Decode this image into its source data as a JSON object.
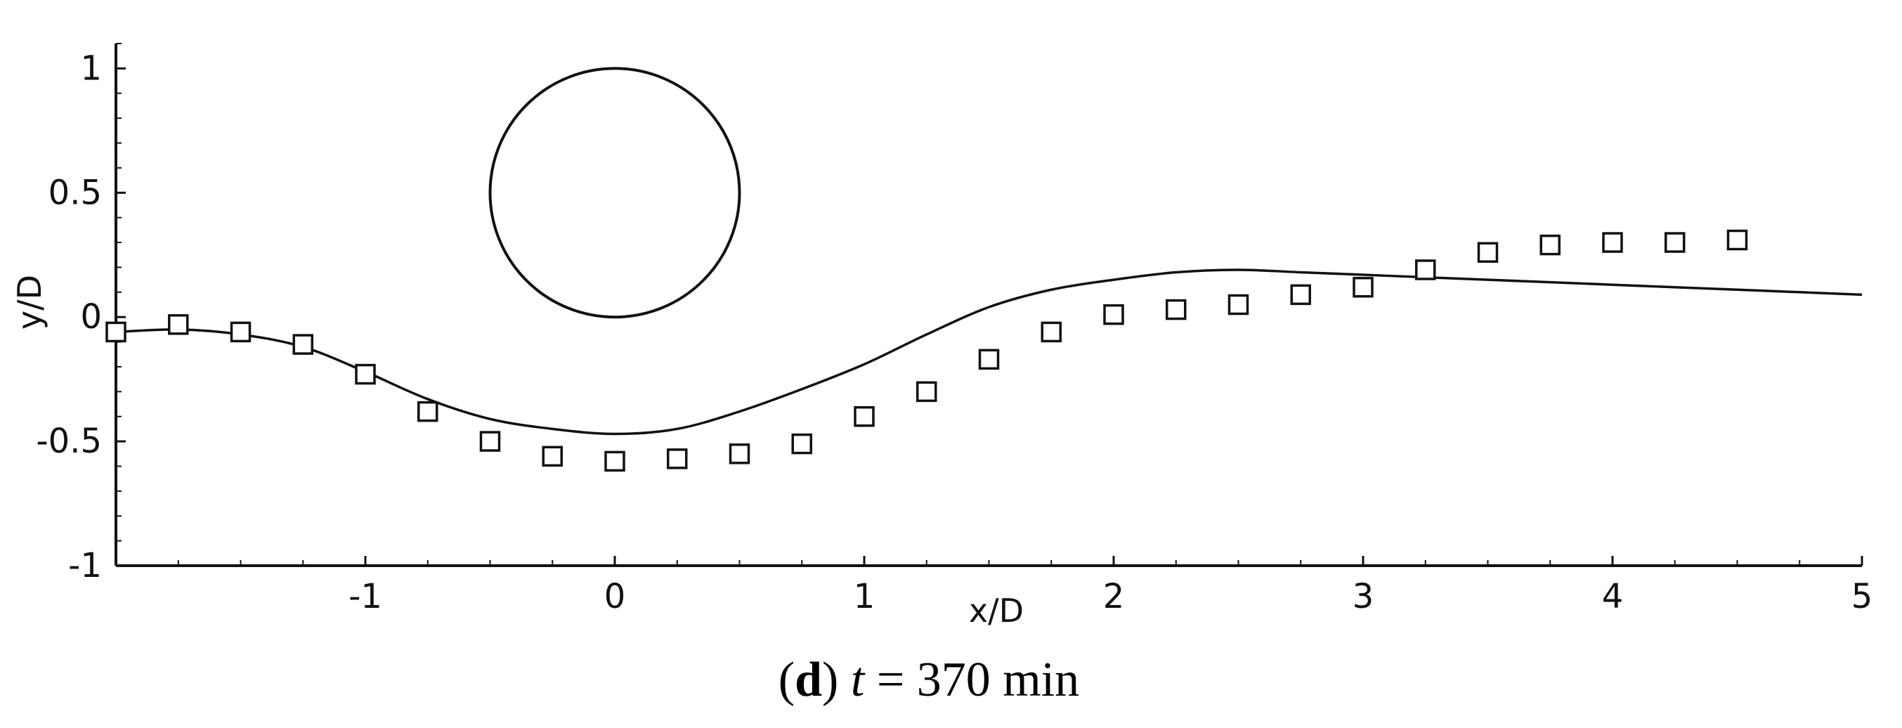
{
  "chart_data": {
    "type": "scatter",
    "xlabel": "x/D",
    "ylabel": "y/D",
    "xlim": [
      -2,
      5
    ],
    "ylim": [
      -1,
      1.1
    ],
    "x_ticks": [
      -1,
      0,
      1,
      2,
      3,
      4,
      5
    ],
    "x_tick_labels": [
      "-1",
      "0",
      "1",
      "2",
      "3",
      "4",
      "5"
    ],
    "y_ticks": [
      -1,
      -0.5,
      0,
      0.5,
      1
    ],
    "y_tick_labels": [
      "-1",
      "-0.5",
      "0",
      "0.5",
      "1"
    ],
    "grid": false,
    "caption": {
      "letter": "d",
      "variable": "t",
      "rest": " = 370 min"
    },
    "cylinder": {
      "cx": 0,
      "cy": 0.5,
      "r": 0.5
    },
    "line_series": {
      "x": [
        -2.0,
        -1.75,
        -1.5,
        -1.25,
        -1.0,
        -0.75,
        -0.5,
        -0.25,
        0.0,
        0.25,
        0.5,
        0.75,
        1.0,
        1.25,
        1.5,
        1.75,
        2.0,
        2.25,
        2.5,
        2.75,
        3.0,
        3.25,
        3.5,
        3.75,
        4.0,
        4.25,
        4.5,
        4.75,
        5.0
      ],
      "y": [
        -0.06,
        -0.05,
        -0.07,
        -0.12,
        -0.22,
        -0.33,
        -0.41,
        -0.45,
        -0.47,
        -0.45,
        -0.38,
        -0.29,
        -0.19,
        -0.07,
        0.04,
        0.11,
        0.15,
        0.18,
        0.19,
        0.18,
        0.17,
        0.16,
        0.15,
        0.14,
        0.13,
        0.12,
        0.11,
        0.1,
        0.09
      ]
    },
    "marker_series": {
      "x": [
        -2.0,
        -1.75,
        -1.5,
        -1.25,
        -1.0,
        -0.75,
        -0.5,
        -0.25,
        0.0,
        0.25,
        0.5,
        0.75,
        1.0,
        1.25,
        1.5,
        1.75,
        2.0,
        2.25,
        2.5,
        2.75,
        3.0,
        3.25,
        3.5,
        3.75,
        4.0,
        4.25,
        4.5
      ],
      "y": [
        -0.06,
        -0.03,
        -0.06,
        -0.11,
        -0.23,
        -0.38,
        -0.5,
        -0.56,
        -0.58,
        -0.57,
        -0.55,
        -0.51,
        -0.4,
        -0.3,
        -0.17,
        -0.06,
        0.01,
        0.03,
        0.05,
        0.09,
        0.12,
        0.19,
        0.26,
        0.29,
        0.3,
        0.3,
        0.31
      ]
    }
  }
}
